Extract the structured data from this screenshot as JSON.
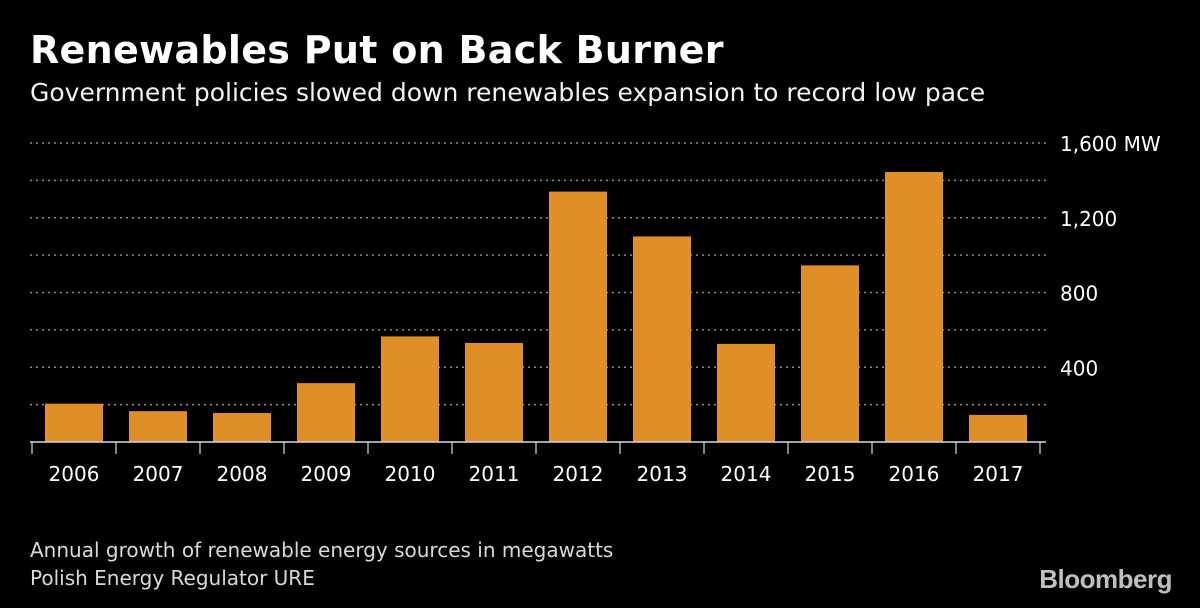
{
  "header": {
    "title": "Renewables Put on Back Burner",
    "subtitle": "Government policies slowed down renewables expansion to record low pace"
  },
  "footer": {
    "note": "Annual growth of renewable energy sources in megawatts",
    "source": "Polish Energy Regulator URE",
    "brand": "Bloomberg"
  },
  "colors": {
    "background": "#000000",
    "bar": "#e08e28",
    "grid": "#8c8c8c",
    "text": "#ffffff"
  },
  "chart_data": {
    "type": "bar",
    "categories": [
      "2006",
      "2007",
      "2008",
      "2009",
      "2010",
      "2011",
      "2012",
      "2013",
      "2014",
      "2015",
      "2016",
      "2017"
    ],
    "values": [
      205,
      165,
      155,
      315,
      565,
      530,
      1340,
      1100,
      525,
      945,
      1445,
      145
    ],
    "ylim": [
      0,
      1600
    ],
    "yticks": [
      {
        "value": 400,
        "label": "400"
      },
      {
        "value": 800,
        "label": "800"
      },
      {
        "value": 1200,
        "label": "1,200"
      },
      {
        "value": 1600,
        "label": "1,600 MW"
      }
    ],
    "grid_values": [
      200,
      400,
      600,
      800,
      1000,
      1200,
      1400,
      1600
    ],
    "grid": true,
    "legend": "none"
  }
}
